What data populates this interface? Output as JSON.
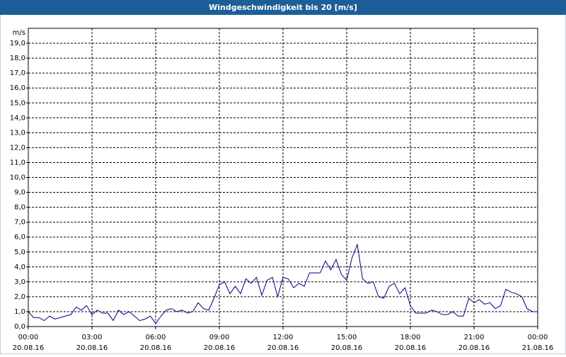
{
  "chart_data": {
    "type": "line",
    "title": "Windgeschwindigkeit bis 20 [m/s]",
    "y_unit": "m/s",
    "xlim": [
      0,
      24
    ],
    "ylim": [
      0,
      20
    ],
    "grid": true,
    "color": "#000080",
    "xticks": [
      {
        "value": 0,
        "label": [
          "00:00",
          "20.08.16"
        ]
      },
      {
        "value": 3,
        "label": [
          "03:00",
          "20.08.16"
        ]
      },
      {
        "value": 6,
        "label": [
          "06:00",
          "20.08.16"
        ]
      },
      {
        "value": 9,
        "label": [
          "09:00",
          "20.08.16"
        ]
      },
      {
        "value": 12,
        "label": [
          "12:00",
          "20.08.16"
        ]
      },
      {
        "value": 15,
        "label": [
          "15:00",
          "20.08.16"
        ]
      },
      {
        "value": 18,
        "label": [
          "18:00",
          "20.08.16"
        ]
      },
      {
        "value": 21,
        "label": [
          "21:00",
          "20.08.16"
        ]
      },
      {
        "value": 24,
        "label": [
          "00:00",
          "21.08.16"
        ]
      }
    ],
    "yticks": [
      {
        "value": 0,
        "label": "0,0"
      },
      {
        "value": 1,
        "label": "1,0"
      },
      {
        "value": 2,
        "label": "2,0"
      },
      {
        "value": 3,
        "label": "3,0"
      },
      {
        "value": 4,
        "label": "4,0"
      },
      {
        "value": 5,
        "label": "5,0"
      },
      {
        "value": 6,
        "label": "6,0"
      },
      {
        "value": 7,
        "label": "7,0"
      },
      {
        "value": 8,
        "label": "8,0"
      },
      {
        "value": 9,
        "label": "9,0"
      },
      {
        "value": 10,
        "label": "10,0"
      },
      {
        "value": 11,
        "label": "11,0"
      },
      {
        "value": 12,
        "label": "12,0"
      },
      {
        "value": 13,
        "label": "13,0"
      },
      {
        "value": 14,
        "label": "14,0"
      },
      {
        "value": 15,
        "label": "15,0"
      },
      {
        "value": 16,
        "label": "16,0"
      },
      {
        "value": 17,
        "label": "17,0"
      },
      {
        "value": 18,
        "label": "18,0"
      },
      {
        "value": 19,
        "label": "19,0"
      }
    ],
    "x": [
      0,
      0.25,
      0.5,
      0.75,
      1,
      1.25,
      1.5,
      1.75,
      2,
      2.25,
      2.5,
      2.75,
      3,
      3.25,
      3.5,
      3.75,
      4,
      4.25,
      4.5,
      4.75,
      5,
      5.25,
      5.5,
      5.75,
      6,
      6.25,
      6.5,
      6.75,
      7,
      7.25,
      7.5,
      7.75,
      8,
      8.25,
      8.5,
      8.75,
      9,
      9.25,
      9.5,
      9.75,
      10,
      10.25,
      10.5,
      10.75,
      11,
      11.25,
      11.5,
      11.75,
      12,
      12.25,
      12.5,
      12.75,
      13,
      13.25,
      13.5,
      13.75,
      14,
      14.25,
      14.5,
      14.75,
      15,
      15.25,
      15.5,
      15.75,
      16,
      16.25,
      16.5,
      16.75,
      17,
      17.25,
      17.5,
      17.75,
      18,
      18.25,
      18.5,
      18.75,
      19,
      19.25,
      19.5,
      19.75,
      20,
      20.25,
      20.5,
      20.75,
      21,
      21.25,
      21.5,
      21.75,
      22,
      22.25,
      22.5,
      22.75,
      23,
      23.25,
      23.5,
      23.75,
      24
    ],
    "values": [
      1.0,
      0.6,
      0.6,
      0.4,
      0.7,
      0.5,
      0.6,
      0.7,
      0.8,
      1.3,
      1.1,
      1.4,
      0.8,
      1.1,
      0.9,
      0.9,
      0.4,
      1.1,
      0.8,
      1.0,
      0.7,
      0.4,
      0.5,
      0.7,
      0.2,
      0.7,
      1.1,
      1.2,
      1.0,
      1.1,
      0.9,
      1.0,
      1.6,
      1.2,
      1.1,
      1.9,
      2.8,
      3.0,
      2.2,
      2.7,
      2.2,
      3.2,
      2.9,
      3.3,
      2.1,
      3.1,
      3.3,
      2.0,
      3.3,
      3.2,
      2.6,
      2.9,
      2.7,
      3.6,
      3.6,
      3.6,
      4.4,
      3.8,
      4.5,
      3.5,
      3.1,
      4.6,
      5.5,
      3.2,
      2.9,
      3.0,
      2.0,
      1.9,
      2.7,
      2.9,
      2.2,
      2.6,
      1.4,
      0.9,
      0.9,
      0.9,
      1.1,
      1.0,
      0.8,
      0.8,
      1.0,
      0.7,
      0.7,
      1.9,
      1.6,
      1.8,
      1.5,
      1.6,
      1.2,
      1.4,
      2.5,
      2.3,
      2.2,
      2.0,
      1.2,
      1.0,
      1.0
    ]
  }
}
